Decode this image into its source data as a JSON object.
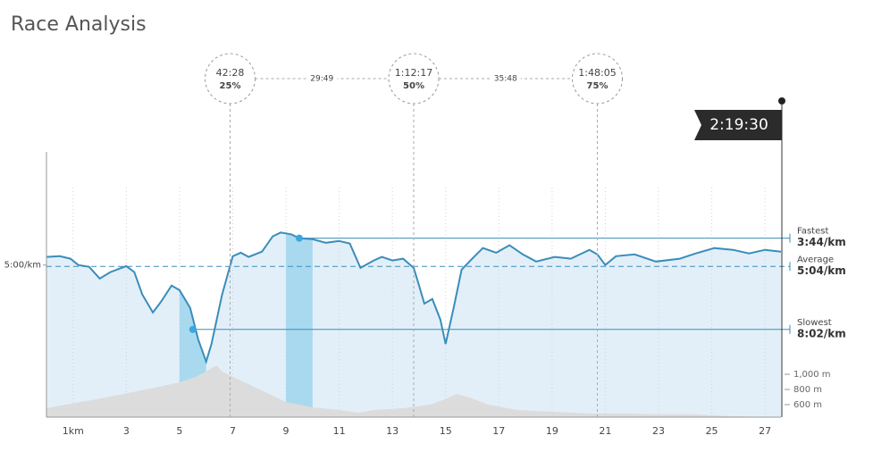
{
  "chart_data": {
    "type": "line",
    "title": "Race Analysis",
    "xlim": [
      0,
      27.6
    ],
    "xticks": [
      {
        "value": 1,
        "label": "1km"
      },
      3,
      5,
      7,
      9,
      11,
      13,
      15,
      17,
      19,
      21,
      23,
      25,
      27
    ],
    "ylim": [
      730,
      -20
    ],
    "yticks": [
      {
        "value": 300,
        "label": "5:00/km"
      }
    ],
    "y2lim": [
      435,
      3930
    ],
    "y2ticks": [
      {
        "value": 1000,
        "label": "1,000 m"
      },
      {
        "value": 800,
        "label": "800 m"
      },
      {
        "value": 600,
        "label": "600 m"
      }
    ],
    "grid": true,
    "pace": {
      "color": "#3a8dba",
      "fill": "#e3eff8",
      "x": [
        0,
        0.5,
        0.9,
        1.2,
        1.6,
        2.0,
        2.4,
        3.0,
        3.3,
        3.6,
        4.0,
        4.3,
        4.7,
        5.0,
        5.4,
        5.7,
        6.0,
        6.2,
        6.6,
        7.0,
        7.3,
        7.6,
        8.1,
        8.5,
        8.8,
        9.2,
        9.5,
        10.0,
        10.5,
        11.0,
        11.4,
        11.8,
        12.3,
        12.6,
        13.0,
        13.4,
        13.8,
        14.0,
        14.2,
        14.5,
        14.8,
        15.0,
        15.3,
        15.6,
        16.0,
        16.4,
        16.9,
        17.4,
        17.9,
        18.4,
        19.1,
        19.7,
        20.4,
        20.7,
        21.0,
        21.4,
        22.1,
        22.9,
        23.8,
        24.4,
        25.1,
        25.8,
        26.4,
        27.0,
        27.6
      ],
      "values": [
        277,
        275,
        282,
        300,
        305,
        338,
        320,
        303,
        320,
        383,
        434,
        404,
        358,
        371,
        421,
        510,
        573,
        523,
        383,
        275,
        265,
        277,
        262,
        219,
        208,
        213,
        224,
        227,
        237,
        232,
        239,
        308,
        287,
        277,
        287,
        282,
        308,
        358,
        409,
        396,
        454,
        523,
        421,
        313,
        282,
        252,
        265,
        244,
        270,
        290,
        277,
        282,
        257,
        270,
        300,
        275,
        270,
        290,
        282,
        267,
        252,
        257,
        267,
        257,
        262
      ]
    },
    "elevation": {
      "color": "#dcdcdc",
      "axis": "y2",
      "x": [
        0,
        0.9,
        1.9,
        2.9,
        3.9,
        5.0,
        5.6,
        6.1,
        6.4,
        6.6,
        7.3,
        8.3,
        9.0,
        10.0,
        11.0,
        11.7,
        12.3,
        13.4,
        14.4,
        15.0,
        15.4,
        15.9,
        16.6,
        17.7,
        19.1,
        20.4,
        21.7,
        23.1,
        24.4,
        25.8,
        27.6
      ],
      "values": [
        553,
        612,
        671,
        741,
        812,
        894,
        965,
        1059,
        1117,
        1035,
        918,
        753,
        635,
        565,
        529,
        494,
        529,
        553,
        600,
        671,
        741,
        694,
        600,
        529,
        506,
        482,
        482,
        471,
        471,
        447,
        435
      ]
    },
    "markers": [
      {
        "name": "Fastest",
        "value": 224,
        "value_label": "3:44/km",
        "x": 9.5,
        "band": [
          9,
          10
        ],
        "color": "#a9d9ef"
      },
      {
        "name": "Average",
        "value": 304,
        "value_label": "5:04/km"
      },
      {
        "name": "Slowest",
        "value": 482,
        "value_label": "8:02/km",
        "x": 5.5,
        "band": [
          5,
          6
        ],
        "color": "#a9d9ef"
      }
    ],
    "splits": [
      {
        "time": "42:28",
        "label": "25%",
        "x": 6.9
      },
      {
        "time": "1:12:17",
        "label": "50%",
        "x": 13.8
      },
      {
        "time": "1:48:05",
        "label": "75%",
        "x": 20.7
      }
    ],
    "split_intervals": [
      "29:49",
      "35:48"
    ],
    "finish": {
      "time": "2:19:30",
      "x": 27.6
    }
  }
}
